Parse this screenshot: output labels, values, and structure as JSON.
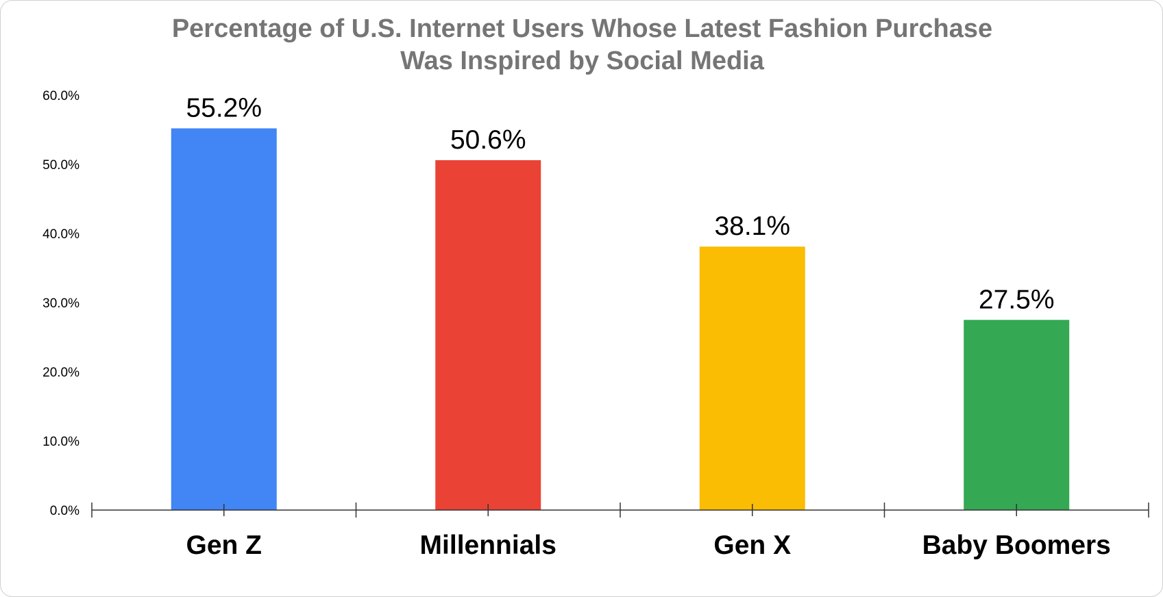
{
  "chart_data": {
    "type": "bar",
    "title_lines": [
      "Percentage of U.S. Internet Users Whose Latest Fashion Purchase",
      "Was Inspired by Social Media"
    ],
    "categories": [
      "Gen Z",
      "Millennials",
      "Gen X",
      "Baby Boomers"
    ],
    "values": [
      55.2,
      50.6,
      38.1,
      27.5
    ],
    "value_labels": [
      "55.2%",
      "50.6%",
      "38.1%",
      "27.5%"
    ],
    "colors": [
      "#4285F4",
      "#EA4335",
      "#FBBC04",
      "#34A853"
    ],
    "xlabel": "",
    "ylabel": "",
    "ylim": [
      0,
      60
    ],
    "yticks": [
      0,
      10,
      20,
      30,
      40,
      50,
      60
    ],
    "ytick_labels": [
      "0.0%",
      "10.0%",
      "20.0%",
      "30.0%",
      "40.0%",
      "50.0%",
      "60.0%"
    ],
    "grid": false,
    "legend": "none",
    "title_color": "#757575",
    "axis_color": "#333333"
  }
}
